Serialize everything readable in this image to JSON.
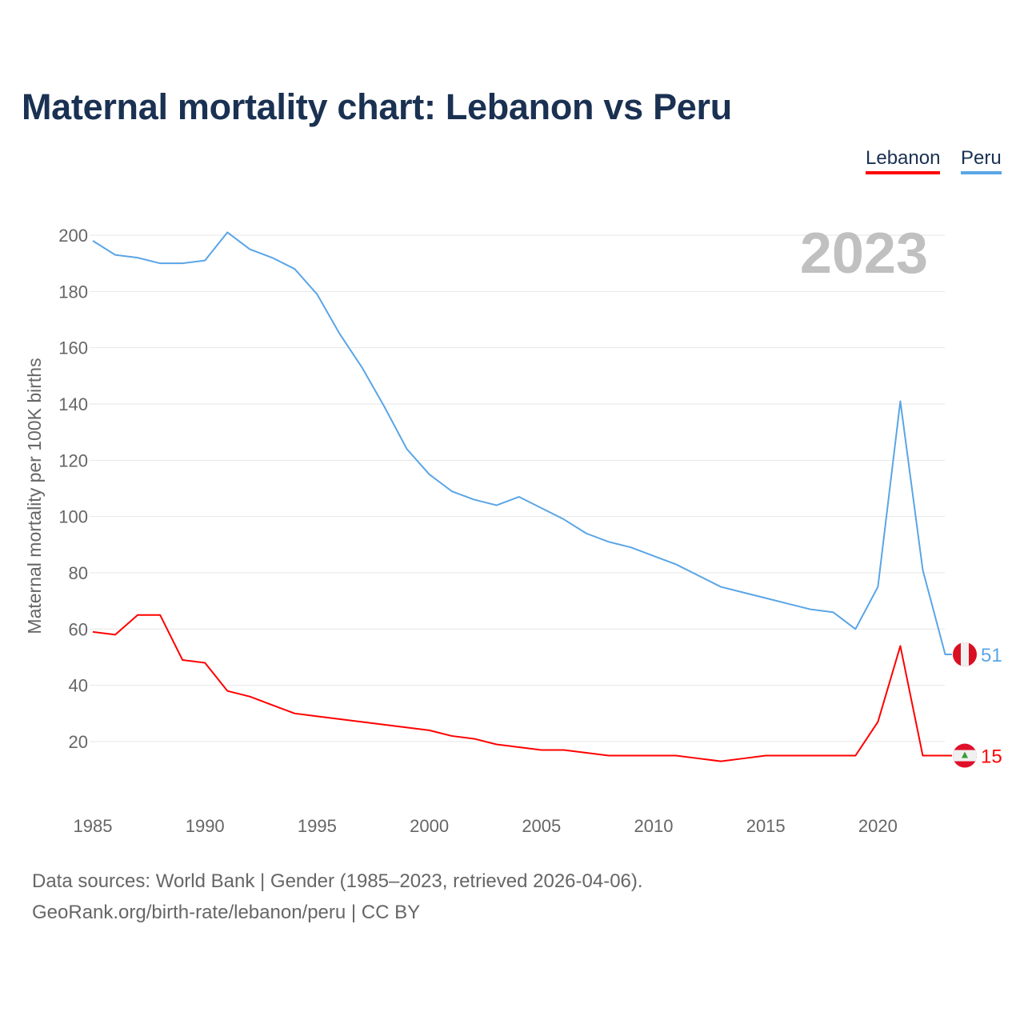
{
  "title": "Maternal mortality chart: Lebanon vs Peru",
  "legend": {
    "lebanon": "Lebanon",
    "peru": "Peru"
  },
  "footer": {
    "line1": "Data sources: World Bank | Gender (1985–2023, retrieved 2026-04-06).",
    "line2": "GeoRank.org/birth-rate/lebanon/peru | CC BY"
  },
  "colors": {
    "lebanon": "#ff0000",
    "peru": "#5aa5e6",
    "title": "#1a3152"
  },
  "chart_data": {
    "type": "line",
    "title": "Maternal mortality chart: Lebanon vs Peru",
    "xlabel": "",
    "ylabel": "Maternal mortality per 100K births",
    "year_watermark": "2023",
    "xlim": [
      1985,
      2023
    ],
    "ylim": [
      0,
      200
    ],
    "xticks": [
      1985,
      1990,
      1995,
      2000,
      2005,
      2010,
      2015,
      2020
    ],
    "yticks": [
      20,
      40,
      60,
      80,
      100,
      120,
      140,
      160,
      180,
      200
    ],
    "grid": true,
    "legend_position": "top-right",
    "x": [
      1985,
      1986,
      1987,
      1988,
      1989,
      1990,
      1991,
      1992,
      1993,
      1994,
      1995,
      1996,
      1997,
      1998,
      1999,
      2000,
      2001,
      2002,
      2003,
      2004,
      2005,
      2006,
      2007,
      2008,
      2009,
      2010,
      2011,
      2012,
      2013,
      2014,
      2015,
      2016,
      2017,
      2018,
      2019,
      2020,
      2021,
      2022,
      2023
    ],
    "series": [
      {
        "name": "Peru",
        "color": "#5aa5e6",
        "end_label": "51",
        "values": [
          198,
          193,
          192,
          190,
          190,
          191,
          201,
          195,
          192,
          188,
          179,
          165,
          153,
          139,
          124,
          115,
          109,
          106,
          104,
          107,
          103,
          99,
          94,
          91,
          89,
          86,
          83,
          79,
          75,
          73,
          71,
          69,
          67,
          66,
          60,
          75,
          141,
          81,
          51
        ]
      },
      {
        "name": "Lebanon",
        "color": "#ff0000",
        "end_label": "15",
        "values": [
          59,
          58,
          65,
          65,
          49,
          48,
          38,
          36,
          33,
          30,
          29,
          28,
          27,
          26,
          25,
          24,
          22,
          21,
          19,
          18,
          17,
          17,
          16,
          15,
          15,
          15,
          15,
          14,
          13,
          14,
          15,
          15,
          15,
          15,
          15,
          27,
          54,
          15,
          15
        ]
      }
    ]
  }
}
